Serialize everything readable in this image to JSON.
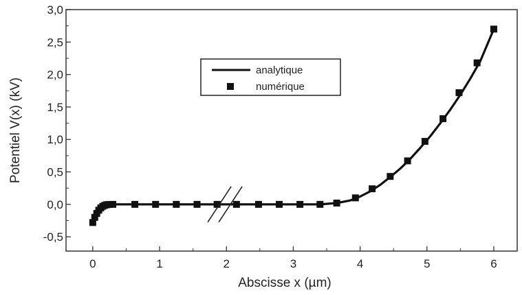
{
  "chart_data": {
    "type": "line",
    "title": "",
    "xlabel": "Abscisse x (µm)",
    "ylabel": "Potentiel V(x) (kV)",
    "xlim": [
      -0.4,
      6.35
    ],
    "ylim": [
      -0.72,
      3.0
    ],
    "x_ticks": [
      0,
      1,
      2,
      3,
      4,
      5,
      6
    ],
    "x_tick_labels": [
      "0",
      "1",
      "2",
      "3",
      "4",
      "5",
      "6"
    ],
    "y_ticks": [
      -0.5,
      0.0,
      0.5,
      1.0,
      1.5,
      2.0,
      2.5,
      3.0
    ],
    "y_tick_labels": [
      "-0,5",
      "0,0",
      "0,5",
      "1,0",
      "1,5",
      "2,0",
      "2,5",
      "3,0"
    ],
    "grid": false,
    "legend_position": "top-center",
    "axis_break_x": 2.05,
    "series": [
      {
        "name": "analytique",
        "style": "line",
        "color": "#111111",
        "x": [
          0,
          0.03,
          0.06,
          0.09,
          0.12,
          0.15,
          0.18,
          0.21,
          0.24,
          0.27,
          0.3,
          3.4,
          3.65,
          3.85,
          4.0,
          4.15,
          4.3,
          4.45,
          4.6,
          4.75,
          4.9,
          5.05,
          5.2,
          5.35,
          5.5,
          5.65,
          5.8,
          6.0
        ],
        "y": [
          -0.28,
          -0.2,
          -0.14,
          -0.09,
          -0.055,
          -0.03,
          -0.015,
          -0.006,
          -0.002,
          0.0,
          0.0,
          0.0,
          0.02,
          0.06,
          0.12,
          0.2,
          0.3,
          0.42,
          0.55,
          0.7,
          0.87,
          1.05,
          1.25,
          1.46,
          1.69,
          1.94,
          2.21,
          2.7
        ]
      },
      {
        "name": "numérique",
        "style": "square-markers",
        "color": "#111111",
        "x": [
          0,
          0.03,
          0.06,
          0.09,
          0.12,
          0.15,
          0.18,
          0.21,
          0.24,
          0.3,
          0.63,
          0.94,
          1.25,
          1.56,
          1.86,
          2.15,
          2.48,
          2.79,
          3.1,
          3.4,
          3.65,
          3.93,
          4.18,
          4.45,
          4.71,
          4.97,
          5.24,
          5.48,
          5.75,
          6.0
        ],
        "y": [
          -0.28,
          -0.2,
          -0.14,
          -0.09,
          -0.055,
          -0.03,
          -0.015,
          -0.006,
          -0.002,
          0.0,
          0.0,
          0.0,
          0.0,
          0.0,
          0.0,
          0.0,
          0.0,
          0.0,
          0.0,
          0.0,
          0.02,
          0.1,
          0.24,
          0.43,
          0.67,
          0.97,
          1.32,
          1.72,
          2.18,
          2.7
        ]
      }
    ]
  }
}
